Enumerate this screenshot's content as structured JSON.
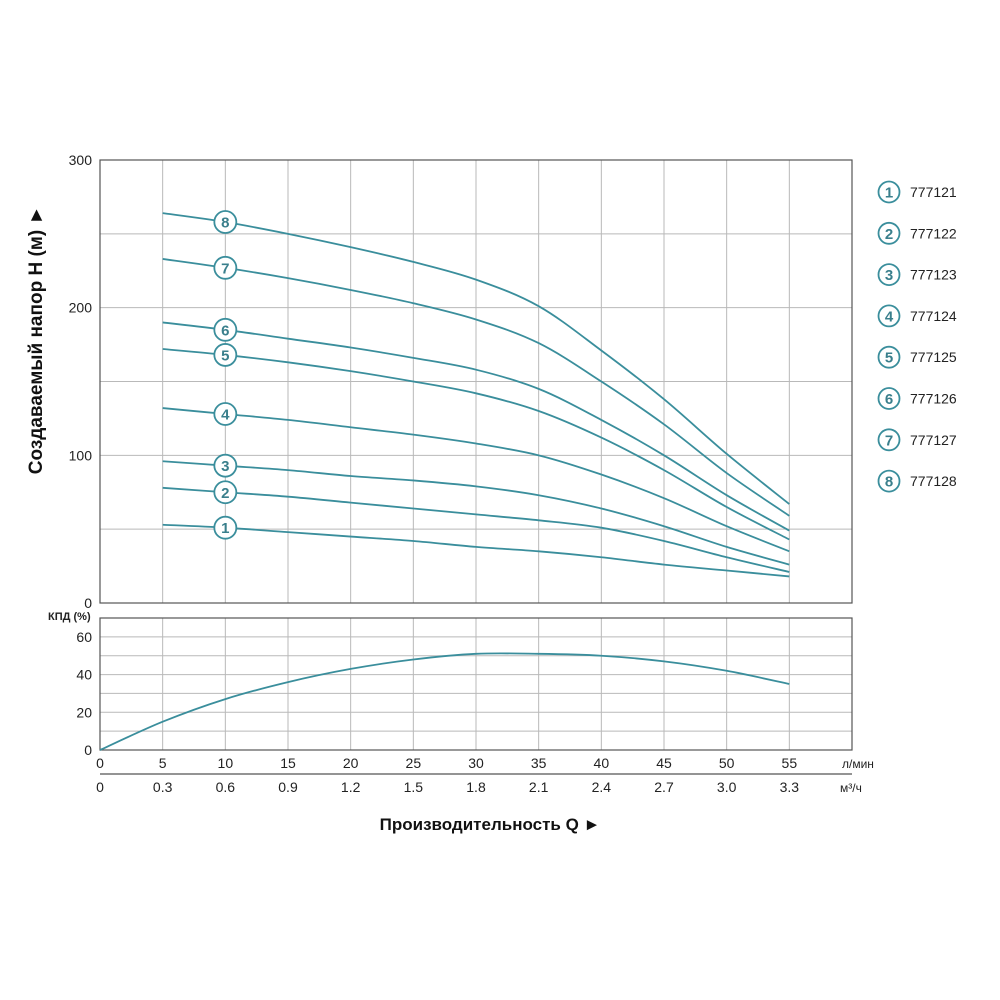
{
  "chart_data": [
    {
      "type": "line",
      "ylabel": "Создаваемый напор H (м) ►",
      "ylim": [
        0,
        300
      ],
      "yticks": [
        0,
        100,
        200,
        300
      ],
      "xlim": [
        0,
        60
      ],
      "grid": true,
      "series": [
        {
          "name": "777121",
          "marker": "1",
          "x": [
            5,
            10,
            15,
            20,
            25,
            30,
            35,
            40,
            45,
            50,
            55
          ],
          "y": [
            53,
            51,
            48,
            45,
            42,
            38,
            35,
            31,
            26,
            22,
            18
          ]
        },
        {
          "name": "777122",
          "marker": "2",
          "x": [
            5,
            10,
            15,
            20,
            25,
            30,
            35,
            40,
            45,
            50,
            55
          ],
          "y": [
            78,
            75,
            72,
            68,
            64,
            60,
            56,
            51,
            42,
            31,
            21
          ]
        },
        {
          "name": "777123",
          "marker": "3",
          "x": [
            5,
            10,
            15,
            20,
            25,
            30,
            35,
            40,
            45,
            50,
            55
          ],
          "y": [
            96,
            93,
            90,
            86,
            83,
            79,
            73,
            64,
            52,
            38,
            26
          ]
        },
        {
          "name": "777124",
          "marker": "4",
          "x": [
            5,
            10,
            15,
            20,
            25,
            30,
            35,
            40,
            45,
            50,
            55
          ],
          "y": [
            132,
            128,
            124,
            119,
            114,
            108,
            100,
            87,
            71,
            52,
            35
          ]
        },
        {
          "name": "777125",
          "marker": "5",
          "x": [
            5,
            10,
            15,
            20,
            25,
            30,
            35,
            40,
            45,
            50,
            55
          ],
          "y": [
            172,
            168,
            163,
            157,
            150,
            142,
            130,
            112,
            90,
            65,
            43
          ]
        },
        {
          "name": "777126",
          "marker": "6",
          "x": [
            5,
            10,
            15,
            20,
            25,
            30,
            35,
            40,
            45,
            50,
            55
          ],
          "y": [
            190,
            185,
            179,
            173,
            166,
            158,
            145,
            124,
            100,
            73,
            49
          ]
        },
        {
          "name": "777127",
          "marker": "7",
          "x": [
            5,
            10,
            15,
            20,
            25,
            30,
            35,
            40,
            45,
            50,
            55
          ],
          "y": [
            233,
            227,
            220,
            212,
            203,
            192,
            176,
            150,
            121,
            88,
            59
          ]
        },
        {
          "name": "777128",
          "marker": "8",
          "x": [
            5,
            10,
            15,
            20,
            25,
            30,
            35,
            40,
            45,
            50,
            55
          ],
          "y": [
            264,
            258,
            250,
            241,
            231,
            219,
            201,
            171,
            138,
            101,
            67
          ]
        }
      ]
    },
    {
      "type": "line",
      "ylabel": "КПД (%)",
      "ylim": [
        0,
        70
      ],
      "yticks": [
        0,
        20,
        40,
        60
      ],
      "xlim": [
        0,
        60
      ],
      "grid": true,
      "series": [
        {
          "x": [
            0,
            5,
            10,
            15,
            20,
            25,
            30,
            35,
            40,
            45,
            50,
            55
          ],
          "y": [
            0,
            15,
            27,
            36,
            43,
            48,
            51,
            51,
            50,
            47,
            42,
            35
          ]
        }
      ]
    }
  ],
  "x_axis": {
    "flow_lmin_unit": "л/мин",
    "flow_lmin_ticks": [
      0,
      5,
      10,
      15,
      20,
      25,
      30,
      35,
      40,
      45,
      50,
      55
    ],
    "flow_m3h_unit": "м³/ч",
    "flow_m3h_ticks": [
      "0",
      "0.3",
      "0.6",
      "0.9",
      "1.2",
      "1.5",
      "1.8",
      "2.1",
      "2.4",
      "2.7",
      "3.0",
      "3.3"
    ],
    "label": "Производительность Q ►"
  },
  "legend": {
    "position": "right",
    "items": [
      {
        "marker": "1",
        "label": "777121"
      },
      {
        "marker": "2",
        "label": "777122"
      },
      {
        "marker": "3",
        "label": "777123"
      },
      {
        "marker": "4",
        "label": "777124"
      },
      {
        "marker": "5",
        "label": "777125"
      },
      {
        "marker": "6",
        "label": "777126"
      },
      {
        "marker": "7",
        "label": "777127"
      },
      {
        "marker": "8",
        "label": "777128"
      }
    ]
  },
  "colors": {
    "curve": "#3a8e9c",
    "grid": "#b9b9b9",
    "frame": "#555555"
  }
}
